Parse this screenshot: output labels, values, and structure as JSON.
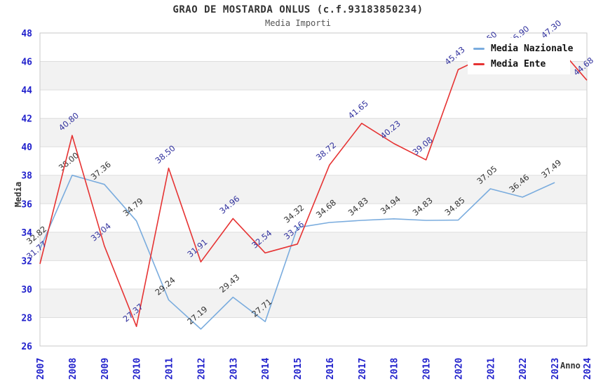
{
  "header": {
    "title": "GRAO DE MOSTARDA ONLUS (c.f.93183850234)",
    "subtitle": "Media Importi"
  },
  "axes": {
    "y_title": "Media",
    "x_title": "Anno"
  },
  "legend": {
    "position": "top-right",
    "items": [
      {
        "label": "Media Nazionale",
        "color": "#7aacde"
      },
      {
        "label": "Media Ente",
        "color": "#e63333"
      }
    ]
  },
  "colors": {
    "band_gray": "#f2f2f2",
    "grid_line": "#dddddd",
    "plot_border": "#c9c9c9",
    "tick_label": "#2222cc",
    "nazionale_line": "#7aacde",
    "nazionale_label": "#333333",
    "ente_line": "#e63333",
    "ente_label": "#32329e"
  },
  "chart_data": {
    "type": "line",
    "title": "GRAO DE MOSTARDA ONLUS (c.f.93183850234)",
    "subtitle": "Media Importi",
    "xlabel": "Anno",
    "ylabel": "Media",
    "x": [
      2007,
      2008,
      2009,
      2010,
      2011,
      2012,
      2013,
      2014,
      2015,
      2016,
      2017,
      2018,
      2019,
      2020,
      2021,
      2022,
      2023,
      2024
    ],
    "ylim": [
      26,
      48
    ],
    "ytick_step": 2,
    "grid": "horizontal-alternating-bands",
    "legend_position": "top-right",
    "series": [
      {
        "name": "Media Nazionale",
        "color": "#7aacde",
        "label_color": "#333333",
        "values": [
          32.82,
          38.0,
          37.36,
          34.79,
          29.24,
          27.19,
          29.43,
          27.71,
          34.32,
          34.68,
          34.83,
          34.94,
          34.83,
          34.85,
          37.05,
          36.46,
          37.49,
          null
        ]
      },
      {
        "name": "Media Ente",
        "color": "#e63333",
        "label_color": "#32329e",
        "values": [
          31.77,
          40.8,
          33.04,
          27.37,
          38.5,
          31.91,
          34.96,
          32.54,
          33.16,
          38.72,
          41.65,
          40.23,
          39.08,
          45.43,
          46.5,
          46.9,
          47.3,
          44.68
        ],
        "estimated_indices": [
          14,
          15
        ],
        "labels_hidden_behind_legend_indices": [
          14,
          15
        ]
      }
    ]
  }
}
